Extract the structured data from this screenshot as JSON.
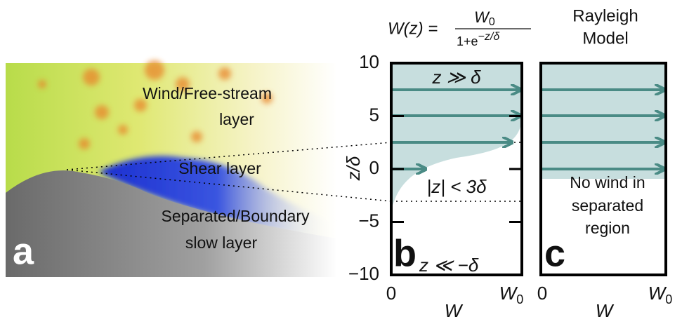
{
  "panel_a": {
    "letter": "a",
    "labels": [
      "Wind/Free-stream",
      "layer",
      "Shear layer",
      "Separated/Boundary",
      "slow layer"
    ]
  },
  "panel_b": {
    "letter": "b",
    "formula": {
      "lhs": "W(z) =",
      "num": "W",
      "num_sub": "0",
      "den": "1+e",
      "den_sup": "−z/δ"
    },
    "y_label": "z/δ",
    "y_ticks": [
      "10",
      "5",
      "0",
      "−5",
      "−10"
    ],
    "x_ticks": [
      "0",
      "W",
      "0"
    ],
    "x_label": "W",
    "notes": [
      "z ≫ δ",
      "|z| < 3δ",
      "z ≪ −δ"
    ]
  },
  "panel_c": {
    "letter": "c",
    "title": [
      "Rayleigh",
      "Model"
    ],
    "x_ticks": [
      "0",
      "W",
      "0"
    ],
    "x_label": "W",
    "notes": [
      "No wind in",
      "separated",
      "region"
    ]
  }
}
